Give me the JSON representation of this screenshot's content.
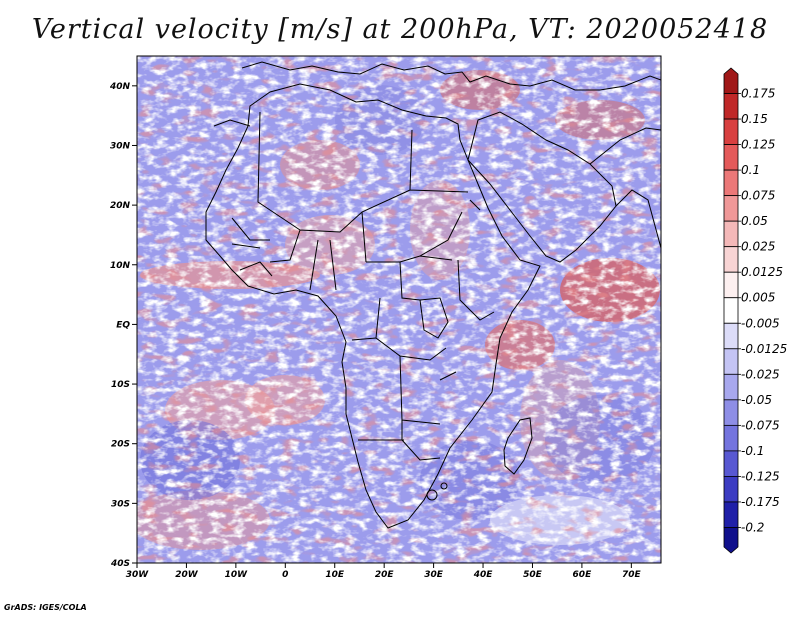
{
  "title": "Vertical velocity [m/s] at 200hPa, VT: 2020052418",
  "footer": "GrADS: IGES/COLA",
  "map": {
    "lon_range": [
      -30,
      76
    ],
    "lat_range": [
      -40,
      45
    ],
    "lat_ticks": [
      {
        "value": 40,
        "label": "40N"
      },
      {
        "value": 30,
        "label": "30N"
      },
      {
        "value": 20,
        "label": "20N"
      },
      {
        "value": 10,
        "label": "10N"
      },
      {
        "value": 0,
        "label": "EQ"
      },
      {
        "value": -10,
        "label": "10S"
      },
      {
        "value": -20,
        "label": "20S"
      },
      {
        "value": -30,
        "label": "30S"
      },
      {
        "value": -40,
        "label": "40S"
      }
    ],
    "lon_ticks": [
      {
        "value": -30,
        "label": "30W"
      },
      {
        "value": -20,
        "label": "20W"
      },
      {
        "value": -10,
        "label": "10W"
      },
      {
        "value": 0,
        "label": "0"
      },
      {
        "value": 10,
        "label": "10E"
      },
      {
        "value": 20,
        "label": "20E"
      },
      {
        "value": 30,
        "label": "30E"
      },
      {
        "value": 40,
        "label": "40E"
      },
      {
        "value": 50,
        "label": "50E"
      },
      {
        "value": 60,
        "label": "60E"
      },
      {
        "value": 70,
        "label": "70E"
      }
    ]
  },
  "colorbar": {
    "labels": [
      "0.175",
      "0.15",
      "0.125",
      "0.1",
      "0.075",
      "0.05",
      "0.025",
      "0.0125",
      "0.005",
      "-0.005",
      "-0.0125",
      "-0.025",
      "-0.05",
      "-0.075",
      "-0.1",
      "-0.125",
      "-0.175",
      "-0.2"
    ],
    "colors": [
      "#a01818",
      "#c02828",
      "#d84040",
      "#e45a5a",
      "#ec7878",
      "#f09898",
      "#f4b8b8",
      "#f8d4d4",
      "#fdf0f0",
      "#ffffff",
      "#dcdcf8",
      "#c4c4f4",
      "#a8a8ee",
      "#8e8ee6",
      "#7474de",
      "#5858d2",
      "#3c3cc2",
      "#2020a8",
      "#10108c"
    ]
  }
}
